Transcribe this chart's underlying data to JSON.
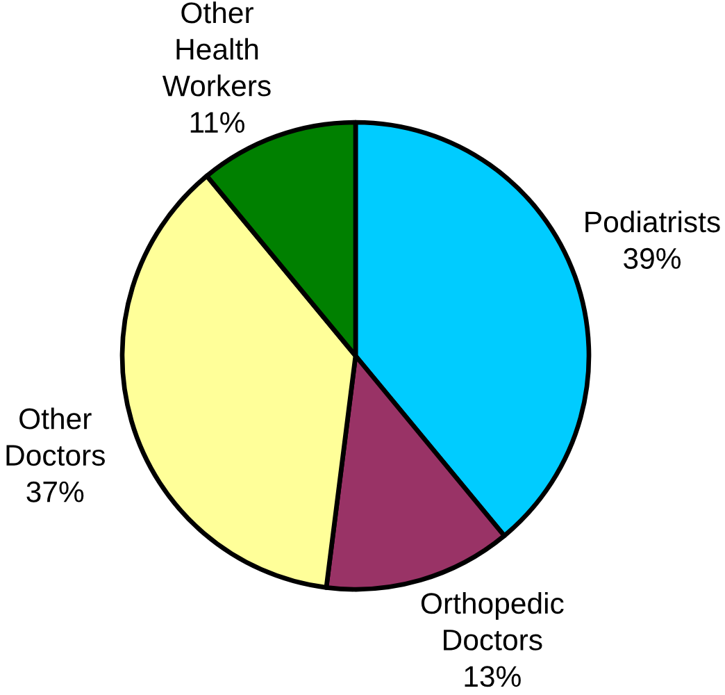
{
  "chart_data": {
    "type": "pie",
    "categories": [
      "Podiatrists",
      "Orthopedic Doctors",
      "Other Doctors",
      "Other Health Workers"
    ],
    "values": [
      39,
      13,
      37,
      11
    ],
    "colors": [
      "#00ccff",
      "#993366",
      "#ffff99",
      "#008000"
    ],
    "value_labels": [
      "39%",
      "13%",
      "37%",
      "11%"
    ]
  }
}
